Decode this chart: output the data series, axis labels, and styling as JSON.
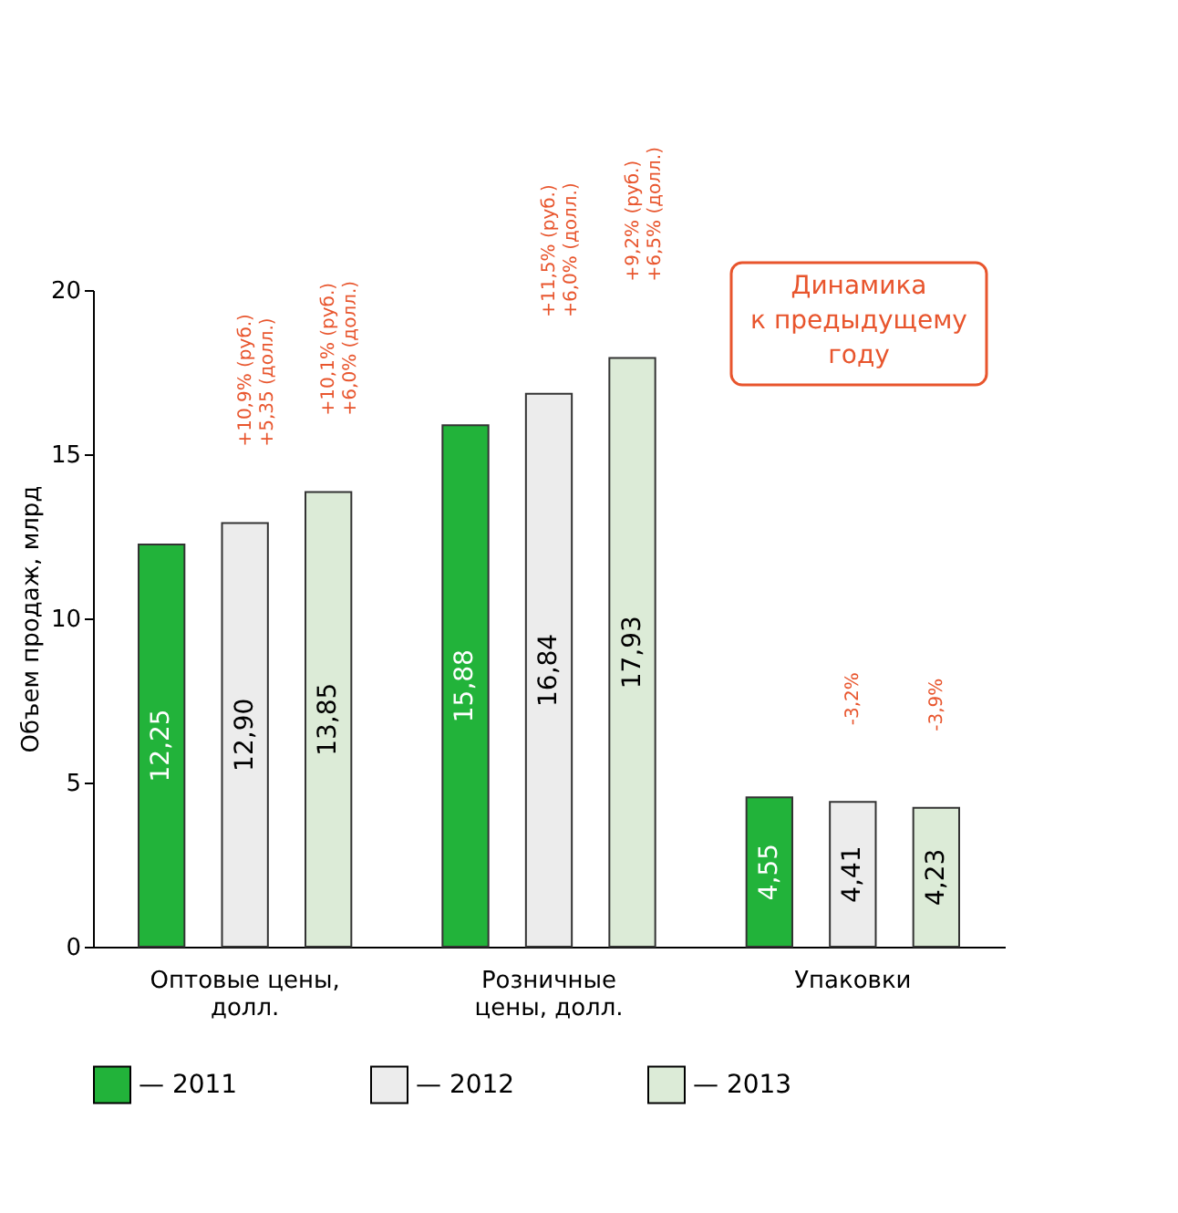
{
  "chart_data": {
    "type": "bar",
    "categories": [
      "Оптовые цены,\nдолл.",
      "Розничные\nцены, долл.",
      "Упаковки"
    ],
    "series": [
      {
        "name": "— 2011",
        "color": "#22b33a",
        "values": [
          12.25,
          15.88,
          4.55
        ],
        "value_labels": [
          "12,25",
          "15,88",
          "4,55"
        ]
      },
      {
        "name": "— 2012",
        "color": "#ececec",
        "values": [
          12.9,
          16.84,
          4.41
        ],
        "value_labels": [
          "12,90",
          "16,84",
          "4,41"
        ]
      },
      {
        "name": "— 2013",
        "color": "#dcebd7",
        "values": [
          13.85,
          17.93,
          4.23
        ],
        "value_labels": [
          "13,85",
          "17,93",
          "4,23"
        ]
      }
    ],
    "ylabel": "Объем продаж, млрд",
    "ylim": [
      0,
      20
    ],
    "yticks": [
      0,
      5,
      10,
      15,
      20
    ],
    "grid": false,
    "legend": "bottom",
    "annotations": [
      "+10,9% (руб.)\n+5,35 (долл.)",
      "+10,1% (руб.)\n+6,0% (долл.)",
      "+11,5% (руб.)\n+6,0% (долл.)",
      "+9,2% (руб.)\n+6,5% (долл.)",
      "-3,2%",
      "-3,9%",
      "Динамика\nк предыдущему\nгоду"
    ]
  }
}
